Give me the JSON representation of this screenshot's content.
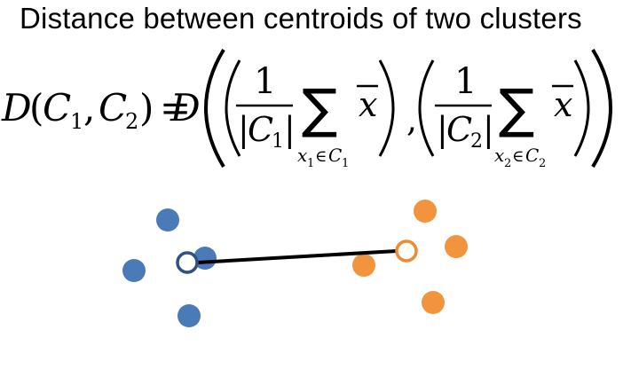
{
  "slide": {
    "title": "Distance between centroids of two clusters"
  },
  "formula": {
    "lhs_func": "D",
    "lhs_c": "C",
    "lhs_sub1": "1",
    "lhs_sub2": "2",
    "comma": ",",
    "equals": "=",
    "rhs_func": "D",
    "numerator": "1",
    "card_c": "C",
    "card_sub1": "1",
    "card_sub2": "2",
    "sum_symbol": "∑",
    "sum_var": "x",
    "sum_in": "∈",
    "sum_set": "C",
    "mean_var": "x"
  },
  "diagram": {
    "cluster1_color": "#4a7ab8",
    "cluster2_color": "#f2933d",
    "centroid1_stroke": "#2f5283",
    "centroid2_stroke": "#ee8a33",
    "connector_color": "#000000"
  }
}
